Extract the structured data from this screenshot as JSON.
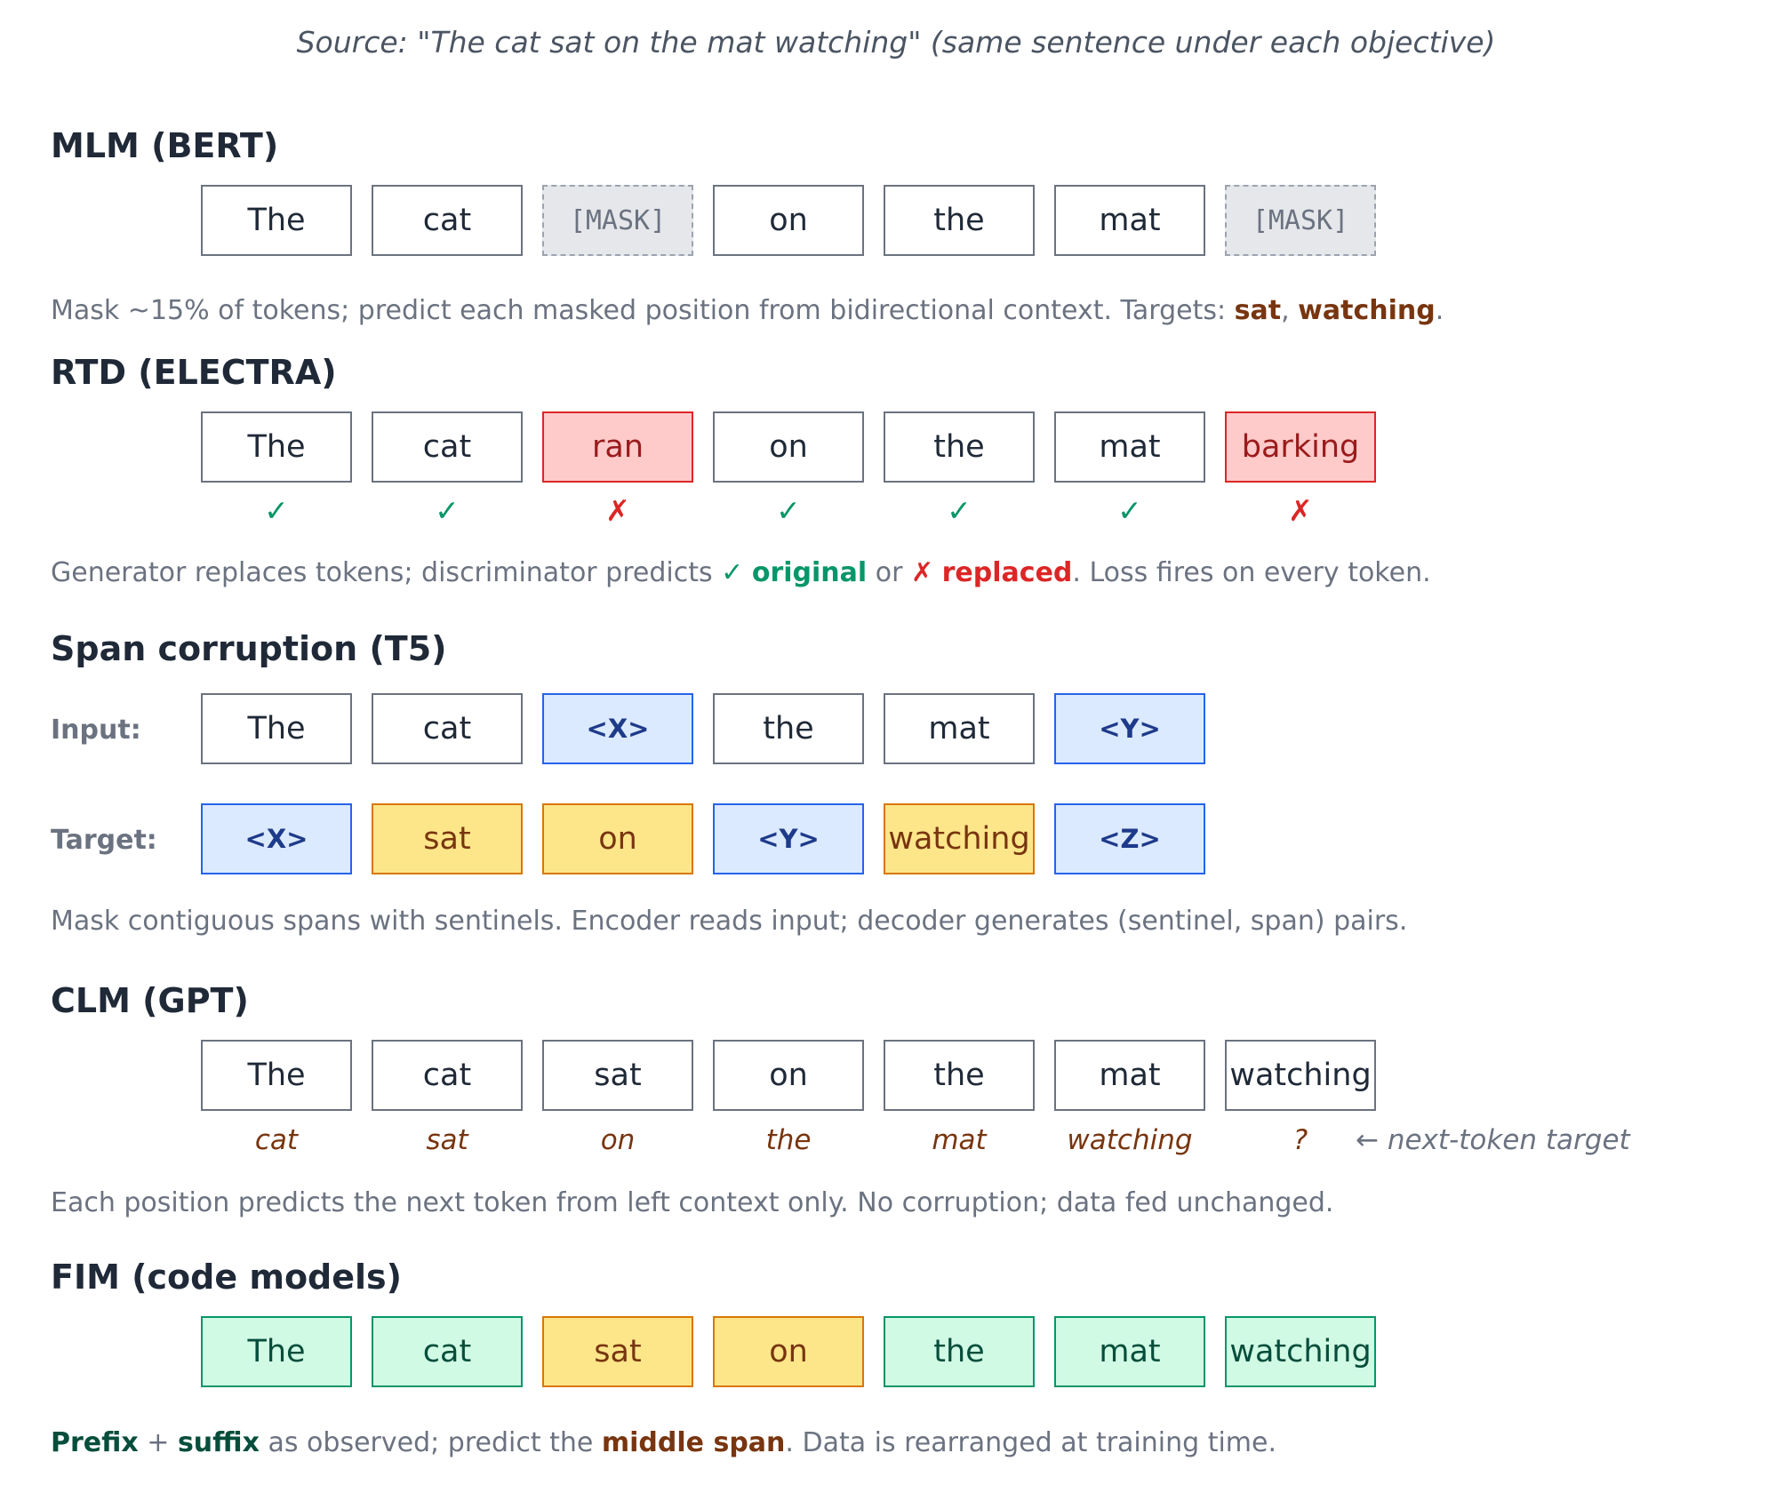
{
  "source": "Source: \"The cat sat on the mat watching\" (same sentence under each objective)",
  "mlm": {
    "title": "MLM (BERT)",
    "tokens": [
      {
        "text": "The",
        "kind": "normal"
      },
      {
        "text": "cat",
        "kind": "normal"
      },
      {
        "text": "[MASK]",
        "kind": "mask"
      },
      {
        "text": "on",
        "kind": "normal"
      },
      {
        "text": "the",
        "kind": "normal"
      },
      {
        "text": "mat",
        "kind": "normal"
      },
      {
        "text": "[MASK]",
        "kind": "mask"
      }
    ],
    "desc_prefix": "Mask ~15% of tokens; predict each masked position from bidirectional context. Targets: ",
    "target1": "sat",
    "sep": ", ",
    "target2": "watching",
    "end": "."
  },
  "rtd": {
    "title": "RTD (ELECTRA)",
    "tokens": [
      {
        "text": "The",
        "kind": "normal"
      },
      {
        "text": "cat",
        "kind": "normal"
      },
      {
        "text": "ran",
        "kind": "replaced"
      },
      {
        "text": "on",
        "kind": "normal"
      },
      {
        "text": "the",
        "kind": "normal"
      },
      {
        "text": "mat",
        "kind": "normal"
      },
      {
        "text": "barking",
        "kind": "replaced"
      }
    ],
    "marks": [
      "✓",
      "✓",
      "✗",
      "✓",
      "✓",
      "✓",
      "✗"
    ],
    "desc_prefix": "Generator replaces tokens; discriminator predicts ",
    "check": "✓",
    "original": "original",
    "or": " or ",
    "cross": "✗",
    "replaced": "replaced",
    "desc_suffix": ". Loss fires on every token."
  },
  "span": {
    "title": "Span corruption (T5)",
    "input_label": "Input:",
    "input_tokens": [
      {
        "text": "The",
        "kind": "normal"
      },
      {
        "text": "cat",
        "kind": "normal"
      },
      {
        "text": "<X>",
        "kind": "sentinel"
      },
      {
        "text": "the",
        "kind": "normal"
      },
      {
        "text": "mat",
        "kind": "normal"
      },
      {
        "text": "<Y>",
        "kind": "sentinel"
      }
    ],
    "target_label": "Target:",
    "target_tokens": [
      {
        "text": "<X>",
        "kind": "sentinel"
      },
      {
        "text": "sat",
        "kind": "span"
      },
      {
        "text": "on",
        "kind": "span"
      },
      {
        "text": "<Y>",
        "kind": "sentinel"
      },
      {
        "text": "watching",
        "kind": "span"
      },
      {
        "text": "<Z>",
        "kind": "sentinel"
      }
    ],
    "desc": "Mask contiguous spans with sentinels. Encoder reads input; decoder generates (sentinel, span) pairs."
  },
  "clm": {
    "title": "CLM (GPT)",
    "tokens": [
      {
        "text": "The",
        "kind": "normal"
      },
      {
        "text": "cat",
        "kind": "normal"
      },
      {
        "text": "sat",
        "kind": "normal"
      },
      {
        "text": "on",
        "kind": "normal"
      },
      {
        "text": "the",
        "kind": "normal"
      },
      {
        "text": "mat",
        "kind": "normal"
      },
      {
        "text": "watching",
        "kind": "normal"
      }
    ],
    "next_tokens": [
      "cat",
      "sat",
      "on",
      "the",
      "mat",
      "watching",
      "?"
    ],
    "next_note": "← next-token target",
    "desc": "Each position predicts the next token from left context only. No corruption; data fed unchanged."
  },
  "fim": {
    "title": "FIM (code models)",
    "tokens": [
      {
        "text": "The",
        "kind": "ctx"
      },
      {
        "text": "cat",
        "kind": "ctx"
      },
      {
        "text": "sat",
        "kind": "span"
      },
      {
        "text": "on",
        "kind": "span"
      },
      {
        "text": "the",
        "kind": "ctx"
      },
      {
        "text": "mat",
        "kind": "ctx"
      },
      {
        "text": "watching",
        "kind": "ctx"
      }
    ],
    "prefix": "Prefix",
    "plus": " + ",
    "suffix": "suffix",
    "mid": " as observed; predict the ",
    "middle": "middle span",
    "end": ". Data is rearranged at training time."
  }
}
